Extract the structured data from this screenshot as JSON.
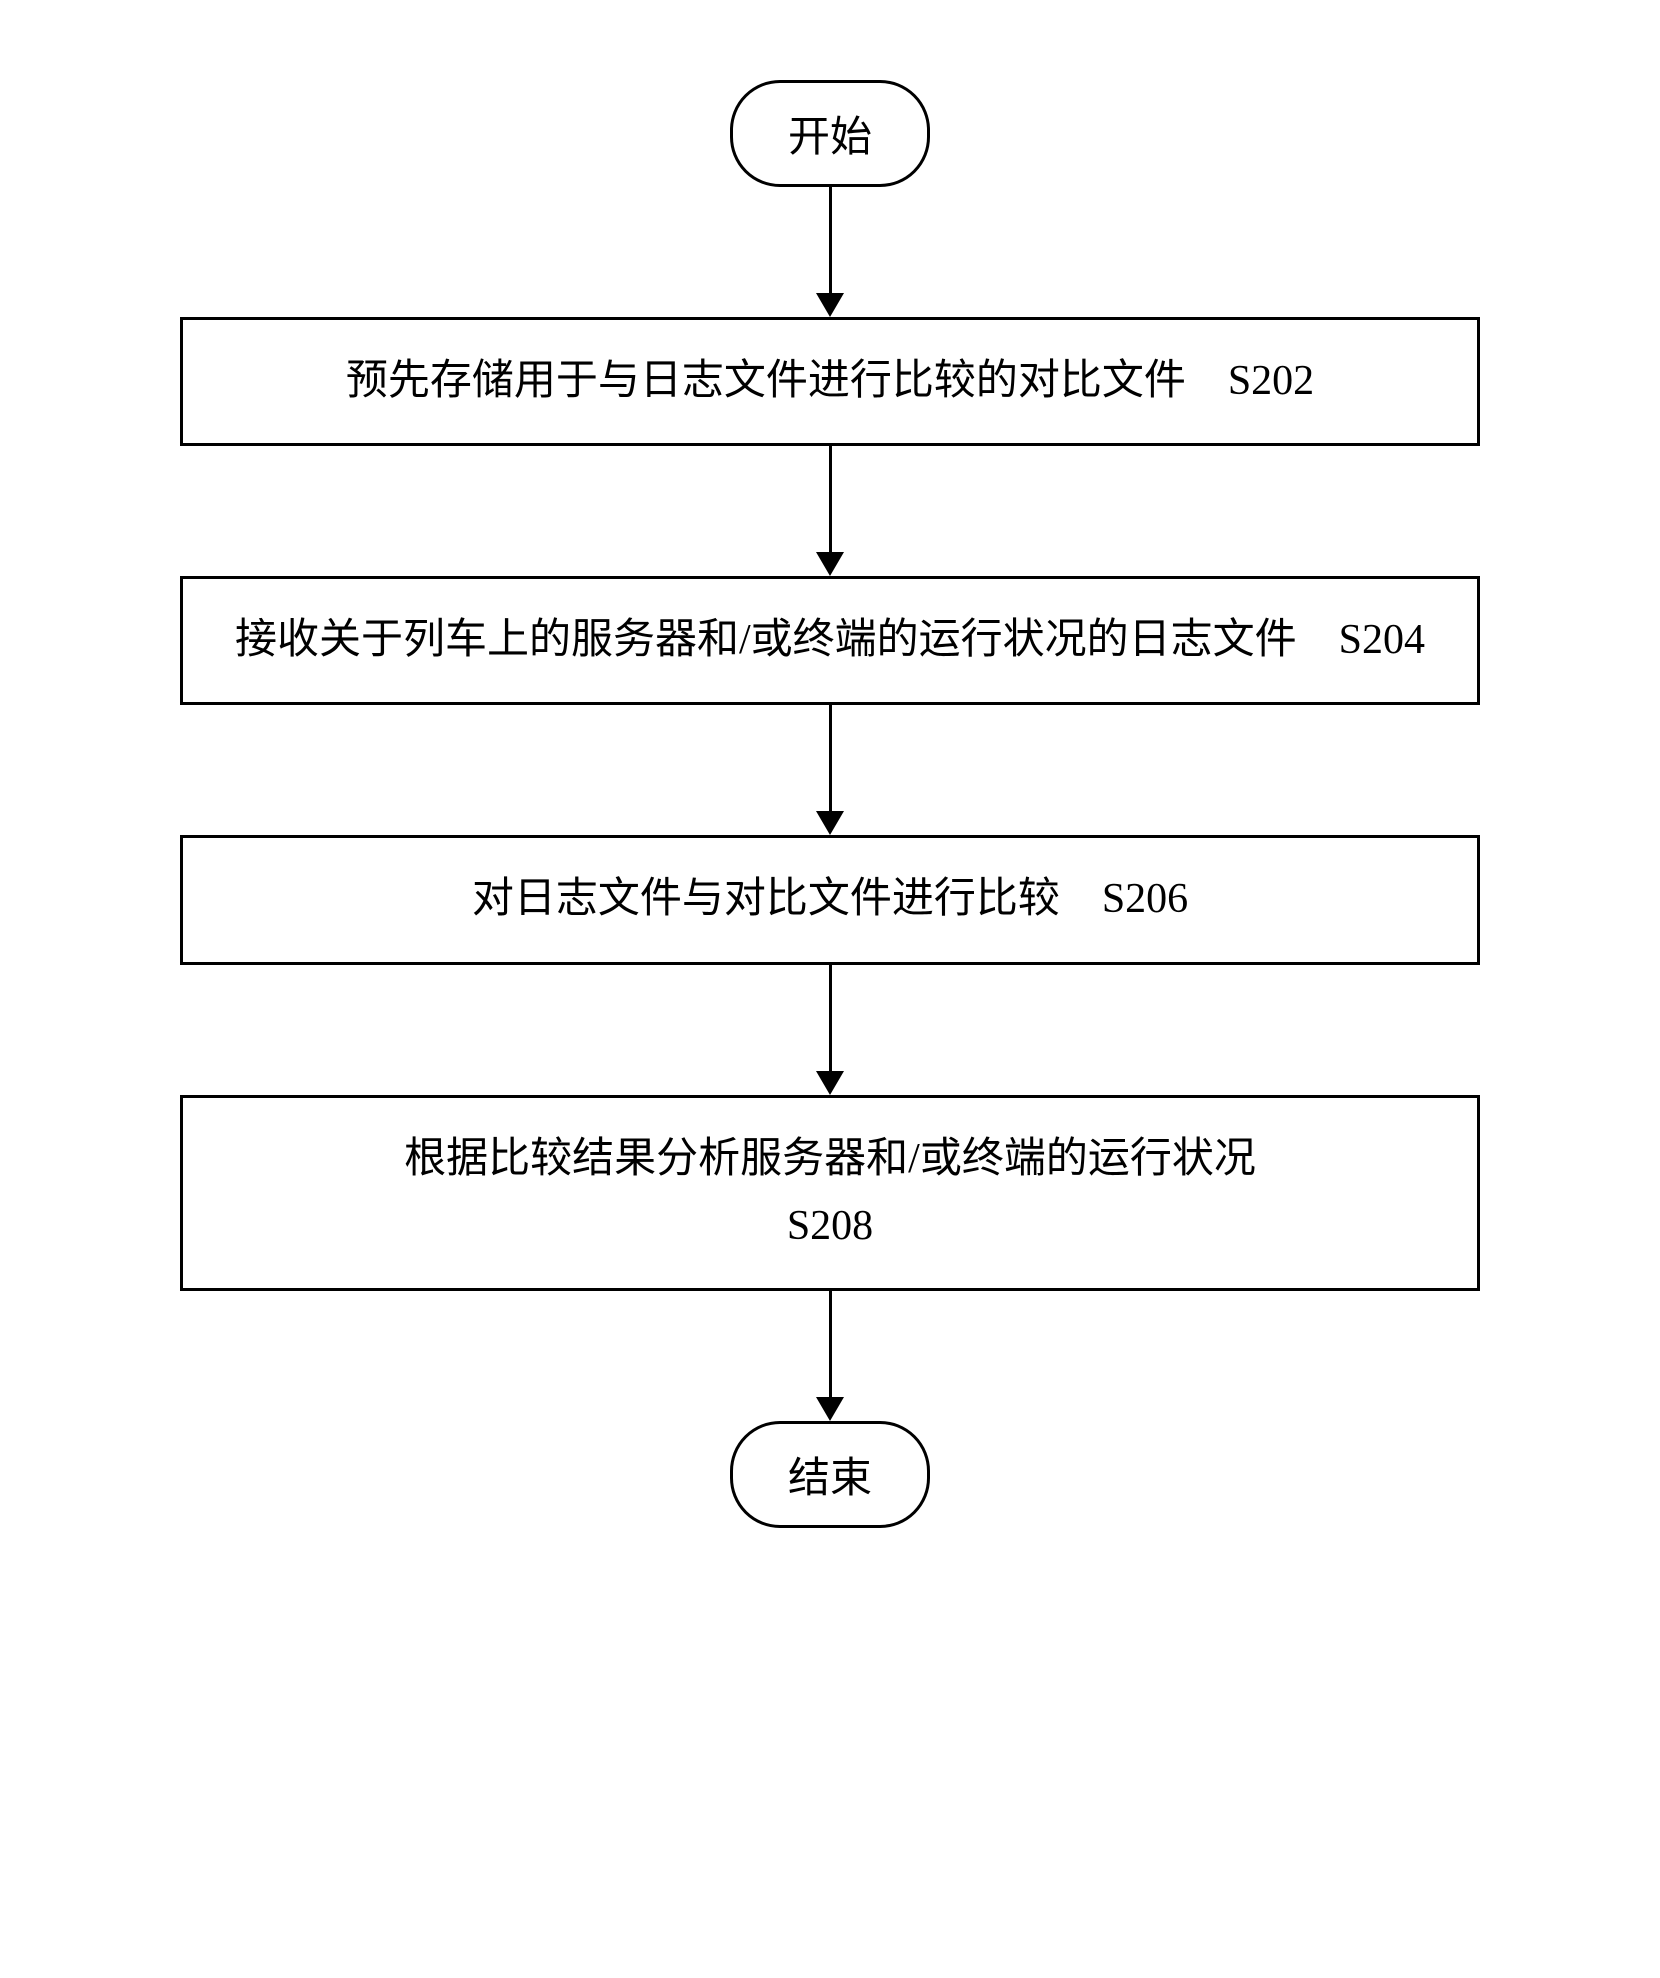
{
  "flowchart": {
    "type": "flowchart",
    "background_color": "#ffffff",
    "border_color": "#000000",
    "text_color": "#000000",
    "font_size": 42,
    "border_width": 3,
    "terminal_border_radius": 50,
    "terminals": {
      "start": "开始",
      "end": "结束"
    },
    "steps": [
      {
        "text": "预先存储用于与日志文件进行比较的对比文件",
        "code": "S202"
      },
      {
        "text": "接收关于列车上的服务器和/或终端的运行状况的日志文件",
        "code": "S204"
      },
      {
        "text": "对日志文件与对比文件进行比较",
        "code": "S206"
      },
      {
        "text": "根据比较结果分析服务器和/或终端的运行状况",
        "code": "S208"
      }
    ]
  }
}
